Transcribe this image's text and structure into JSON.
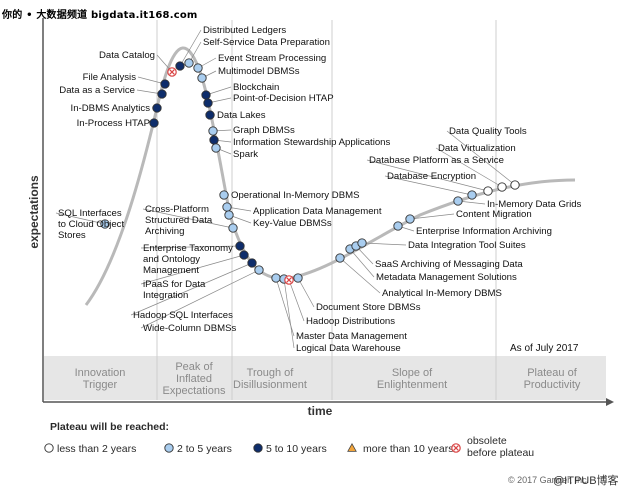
{
  "banner": "你的 • 大数据频道 bigdata.it168.com",
  "chart_data": {
    "type": "scatter",
    "title": "",
    "xlabel": "time",
    "ylabel": "expectations",
    "as_of": "As of July 2017",
    "phases": [
      "Innovation Trigger",
      "Peak of Inflated Expectations",
      "Trough of Disillusionment",
      "Slope of Enlightenment",
      "Plateau of Productivity"
    ],
    "legend_title": "Plateau will be reached:",
    "legend": [
      {
        "key": "lt2",
        "label": "less than 2 years"
      },
      {
        "key": "2to5",
        "label": "2 to 5 years"
      },
      {
        "key": "5to10",
        "label": "5 to 10 years"
      },
      {
        "key": "gt10",
        "label": "more than 10 years"
      },
      {
        "key": "obsolete",
        "label": "obsolete before plateau"
      }
    ],
    "colors": {
      "lt2": "#ffffff",
      "2to5": "#a9cdef",
      "5to10": "#0e2d6b",
      "gt10": "#f2a43a",
      "obsolete": "#d94444",
      "curve": "#b9b9b9"
    },
    "points": [
      {
        "t": 0.0,
        "name": "In-Process HTAP",
        "cat": "5to10"
      },
      {
        "t": 0.01,
        "name": "In-DBMS Analytics",
        "cat": "5to10"
      },
      {
        "t": 0.02,
        "name": "Data as a Service",
        "cat": "5to10"
      },
      {
        "t": 0.03,
        "name": "File Analysis",
        "cat": "5to10"
      },
      {
        "t": 0.04,
        "name": "Data Catalog",
        "cat": "obsolete"
      },
      {
        "t": 0.05,
        "name": "Distributed Ledgers",
        "cat": "5to10"
      },
      {
        "t": 0.06,
        "name": "Self-Service Data Preparation",
        "cat": "2to5"
      },
      {
        "t": 0.07,
        "name": "Event Stream Processing",
        "cat": "2to5"
      },
      {
        "t": 0.08,
        "name": "Multimodel DBMSs",
        "cat": "2to5"
      },
      {
        "t": 0.09,
        "name": "Blockchain",
        "cat": "5to10"
      },
      {
        "t": 0.1,
        "name": "Point-of-Decision HTAP",
        "cat": "5to10"
      },
      {
        "t": 0.11,
        "name": "Data Lakes",
        "cat": "5to10"
      },
      {
        "t": 0.12,
        "name": "Graph DBMSs",
        "cat": "2to5"
      },
      {
        "t": 0.13,
        "name": "Information Stewardship Applications",
        "cat": "5to10"
      },
      {
        "t": 0.14,
        "name": "Spark",
        "cat": "2to5"
      },
      {
        "t": 0.15,
        "name": "Operational In-Memory DBMS",
        "cat": "2to5"
      },
      {
        "t": 0.16,
        "name": "Application Data Management",
        "cat": "2to5"
      },
      {
        "t": 0.17,
        "name": "Key-Value DBMSs",
        "cat": "2to5"
      },
      {
        "t": 0.18,
        "name": "Cross-Platform Structured Data Archiving",
        "cat": "2to5"
      },
      {
        "t": 0.19,
        "name": "Enterprise Taxonomy and Ontology Management",
        "cat": "5to10"
      },
      {
        "t": 0.2,
        "name": "iPaaS for Data Integration",
        "cat": "5to10"
      },
      {
        "t": 0.21,
        "name": "Hadoop SQL Interfaces",
        "cat": "5to10"
      },
      {
        "t": 0.22,
        "name": "Wide-Column DBMSs",
        "cat": "2to5"
      },
      {
        "t": 0.23,
        "name": "Master Data Management",
        "cat": "2to5"
      },
      {
        "t": 0.24,
        "name": "Logical Data Warehouse",
        "cat": "2to5"
      },
      {
        "t": 0.25,
        "name": "Hadoop Distributions",
        "cat": "obsolete"
      },
      {
        "t": 0.26,
        "name": "Document Store DBMSs",
        "cat": "2to5"
      },
      {
        "t": 0.27,
        "name": "Analytical In-Memory DBMS",
        "cat": "2to5"
      },
      {
        "t": 0.28,
        "name": "Metadata Management Solutions",
        "cat": "2to5"
      },
      {
        "t": 0.29,
        "name": "SaaS Archiving of Messaging Data",
        "cat": "2to5"
      },
      {
        "t": 0.3,
        "name": "Data Integration Tool Suites",
        "cat": "2to5"
      },
      {
        "t": 0.31,
        "name": "Enterprise Information Archiving",
        "cat": "2to5"
      },
      {
        "t": 0.32,
        "name": "Content Migration",
        "cat": "2to5"
      },
      {
        "t": 0.33,
        "name": "In-Memory Data Grids",
        "cat": "2to5"
      },
      {
        "t": 0.34,
        "name": "Database Encryption",
        "cat": "2to5"
      },
      {
        "t": 0.35,
        "name": "Database Platform as a Service",
        "cat": "lt2"
      },
      {
        "t": 0.36,
        "name": "Data Virtualization",
        "cat": "lt2"
      },
      {
        "t": 0.37,
        "name": "Data Quality Tools",
        "cat": "lt2"
      },
      {
        "t": 0.38,
        "name": "SQL Interfaces to Cloud Object Stores",
        "cat": "2to5"
      }
    ]
  },
  "footer": {
    "copyright": "© 2017 Gartner, Inc.",
    "watermark": "@ITPUB博客"
  }
}
